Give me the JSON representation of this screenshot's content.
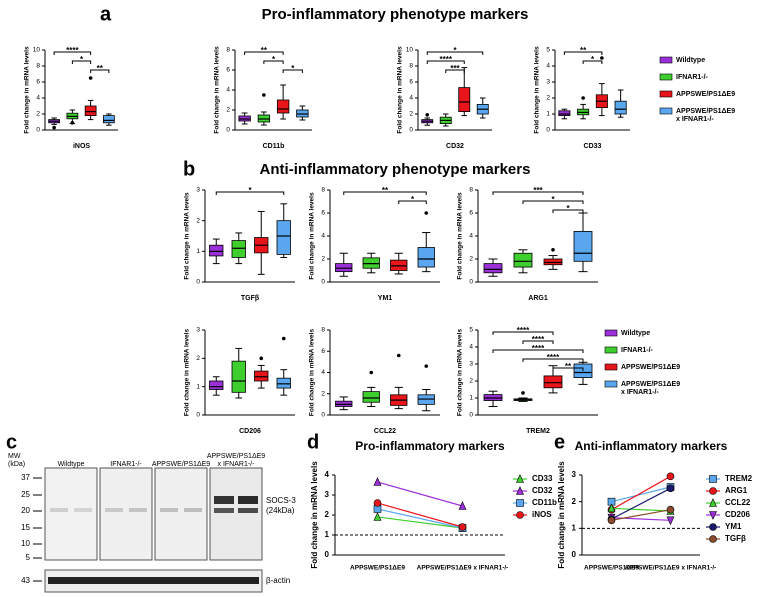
{
  "panels": [
    {
      "letter": "a",
      "title": "Pro-inflammatory phenotype markers"
    },
    {
      "letter": "b",
      "title": "Anti-inflammatory phenotype markers"
    }
  ],
  "groups": {
    "names": [
      [
        "Wildtype"
      ],
      [
        "IFNAR1-/-"
      ],
      [
        "APPSWE/PS1ΔE9"
      ],
      [
        "APPSWE/PS1ΔE9",
        "x IFNAR1-/-"
      ]
    ],
    "colors": [
      "#9b30d9",
      "#3ecf2e",
      "#e8151b",
      "#5aa7f0"
    ]
  },
  "blot": {
    "letter": "c",
    "mw_label": [
      "MW",
      "(kDa)"
    ],
    "mw_ticks": [
      37,
      25,
      20,
      15,
      10,
      5,
      43
    ],
    "lanes": [
      [
        "Wildtype"
      ],
      [
        "IFNAR1-/-"
      ],
      [
        "APPSWE/PS1ΔE9"
      ],
      [
        "APPSWE/PS1ΔE9",
        "x IFNAR1-/-"
      ]
    ],
    "bands": [
      [
        "SOCS-3",
        "(24kDa)"
      ],
      [
        "β-actin"
      ]
    ]
  },
  "chart_data": [
    {
      "type": "boxplot",
      "title": "iNOS",
      "ylabel": "Fold change in mRNA levels",
      "ylim": [
        0,
        10
      ],
      "yticks": [
        0,
        2,
        4,
        6,
        8,
        10
      ],
      "boxes": [
        {
          "min": 0.7,
          "q1": 0.9,
          "median": 1.1,
          "q3": 1.3,
          "max": 1.5,
          "outliers": [
            0.3
          ]
        },
        {
          "min": 0.8,
          "q1": 1.4,
          "median": 1.7,
          "q3": 2.1,
          "max": 2.5,
          "outliers": [
            0.9
          ]
        },
        {
          "min": 1.3,
          "q1": 1.8,
          "median": 2.3,
          "q3": 3.0,
          "max": 3.7,
          "outliers": [
            6.5
          ]
        },
        {
          "min": 0.6,
          "q1": 0.9,
          "median": 1.2,
          "q3": 1.8,
          "max": 2.0,
          "outliers": []
        }
      ],
      "brackets": [
        {
          "label": "****",
          "between": [
            0,
            2
          ]
        },
        {
          "label": "*",
          "between": [
            1,
            2
          ]
        },
        {
          "label": "**",
          "between": [
            2,
            3
          ]
        }
      ]
    },
    {
      "type": "boxplot",
      "title": "CD11b",
      "ylabel": "Fold change in mRNA levels",
      "ylim": [
        0,
        8
      ],
      "yticks": [
        0,
        2,
        4,
        6,
        8
      ],
      "boxes": [
        {
          "min": 0.6,
          "q1": 0.9,
          "median": 1.1,
          "q3": 1.4,
          "max": 1.7,
          "outliers": []
        },
        {
          "min": 0.5,
          "q1": 0.8,
          "median": 1.1,
          "q3": 1.5,
          "max": 1.8,
          "outliers": [
            3.5
          ]
        },
        {
          "min": 1.1,
          "q1": 1.7,
          "median": 2.1,
          "q3": 3.0,
          "max": 4.5,
          "outliers": []
        },
        {
          "min": 1.0,
          "q1": 1.3,
          "median": 1.6,
          "q3": 2.0,
          "max": 2.4,
          "outliers": []
        }
      ],
      "brackets": [
        {
          "label": "**",
          "between": [
            0,
            2
          ]
        },
        {
          "label": "*",
          "between": [
            1,
            2
          ]
        },
        {
          "label": "*",
          "between": [
            2,
            3
          ]
        }
      ]
    },
    {
      "type": "boxplot",
      "title": "CD32",
      "ylabel": "Fold change in mRNA levels",
      "ylim": [
        0,
        10
      ],
      "yticks": [
        0,
        2,
        4,
        6,
        8,
        10
      ],
      "boxes": [
        {
          "min": 0.6,
          "q1": 0.9,
          "median": 1.1,
          "q3": 1.3,
          "max": 1.5,
          "outliers": [
            1.9
          ]
        },
        {
          "min": 0.5,
          "q1": 0.8,
          "median": 1.2,
          "q3": 1.6,
          "max": 2.0,
          "outliers": []
        },
        {
          "min": 1.8,
          "q1": 2.3,
          "median": 3.5,
          "q3": 5.3,
          "max": 7.8,
          "outliers": []
        },
        {
          "min": 1.5,
          "q1": 2.0,
          "median": 2.6,
          "q3": 3.2,
          "max": 4.0,
          "outliers": []
        }
      ],
      "brackets": [
        {
          "label": "*",
          "between": [
            0,
            3
          ]
        },
        {
          "label": "****",
          "between": [
            0,
            2
          ]
        },
        {
          "label": "***",
          "between": [
            1,
            2
          ]
        }
      ]
    },
    {
      "type": "boxplot",
      "title": "CD33",
      "ylabel": "Fold change in mRNA levels",
      "ylim": [
        0,
        5
      ],
      "yticks": [
        0,
        1,
        2,
        3,
        4,
        5
      ],
      "boxes": [
        {
          "min": 0.7,
          "q1": 0.9,
          "median": 1.0,
          "q3": 1.2,
          "max": 1.3,
          "outliers": []
        },
        {
          "min": 0.7,
          "q1": 0.95,
          "median": 1.1,
          "q3": 1.3,
          "max": 1.6,
          "outliers": [
            2.0
          ]
        },
        {
          "min": 0.9,
          "q1": 1.4,
          "median": 1.8,
          "q3": 2.2,
          "max": 2.9,
          "outliers": [
            4.5
          ]
        },
        {
          "min": 0.8,
          "q1": 1.0,
          "median": 1.3,
          "q3": 1.8,
          "max": 2.5,
          "outliers": []
        }
      ],
      "brackets": [
        {
          "label": "**",
          "between": [
            0,
            2
          ]
        },
        {
          "label": "*",
          "between": [
            1,
            2
          ]
        }
      ]
    },
    {
      "type": "boxplot",
      "title": "TGFβ",
      "ylabel": "Fold change in mRNA levels",
      "ylim": [
        0,
        3
      ],
      "yticks": [
        0,
        1,
        2,
        3
      ],
      "boxes": [
        {
          "min": 0.6,
          "q1": 0.85,
          "median": 1.0,
          "q3": 1.2,
          "max": 1.4,
          "outliers": []
        },
        {
          "min": 0.6,
          "q1": 0.8,
          "median": 1.1,
          "q3": 1.35,
          "max": 1.6,
          "outliers": []
        },
        {
          "min": 0.25,
          "q1": 0.95,
          "median": 1.2,
          "q3": 1.45,
          "max": 2.3,
          "outliers": []
        },
        {
          "min": 0.8,
          "q1": 0.9,
          "median": 1.5,
          "q3": 2.0,
          "max": 2.55,
          "outliers": []
        }
      ],
      "brackets": [
        {
          "label": "*",
          "between": [
            0,
            3
          ]
        }
      ]
    },
    {
      "type": "boxplot",
      "title": "YM1",
      "ylabel": "Fold change in mRNA levels",
      "ylim": [
        0,
        8
      ],
      "yticks": [
        0,
        2,
        4,
        6,
        8
      ],
      "boxes": [
        {
          "min": 0.5,
          "q1": 0.9,
          "median": 1.2,
          "q3": 1.6,
          "max": 2.5,
          "outliers": []
        },
        {
          "min": 0.8,
          "q1": 1.2,
          "median": 1.6,
          "q3": 2.1,
          "max": 2.5,
          "outliers": []
        },
        {
          "min": 0.7,
          "q1": 1.0,
          "median": 1.4,
          "q3": 1.9,
          "max": 2.5,
          "outliers": []
        },
        {
          "min": 0.9,
          "q1": 1.3,
          "median": 2.0,
          "q3": 3.0,
          "max": 4.3,
          "outliers": [
            6.0
          ]
        }
      ],
      "brackets": [
        {
          "label": "**",
          "between": [
            0,
            3
          ]
        },
        {
          "label": "*",
          "between": [
            2,
            3
          ]
        }
      ]
    },
    {
      "type": "boxplot",
      "title": "ARG1",
      "ylabel": "Fold change in mRNA levels",
      "ylim": [
        0,
        8
      ],
      "yticks": [
        0,
        2,
        4,
        6,
        8
      ],
      "boxes": [
        {
          "min": 0.5,
          "q1": 0.8,
          "median": 1.1,
          "q3": 1.6,
          "max": 2.0,
          "outliers": []
        },
        {
          "min": 0.8,
          "q1": 1.3,
          "median": 1.8,
          "q3": 2.5,
          "max": 2.8,
          "outliers": []
        },
        {
          "min": 1.1,
          "q1": 1.5,
          "median": 1.7,
          "q3": 2.0,
          "max": 2.3,
          "outliers": [
            2.8
          ]
        },
        {
          "min": 0.9,
          "q1": 1.8,
          "median": 2.5,
          "q3": 4.4,
          "max": 6.0,
          "outliers": []
        }
      ],
      "brackets": [
        {
          "label": "***",
          "between": [
            0,
            3
          ]
        },
        {
          "label": "*",
          "between": [
            1,
            3
          ]
        },
        {
          "label": "*",
          "between": [
            2,
            3
          ]
        }
      ]
    },
    {
      "type": "boxplot",
      "title": "CD206",
      "ylabel": "Fold change in mRNA levels",
      "ylim": [
        0,
        3
      ],
      "yticks": [
        0,
        1,
        2,
        3
      ],
      "boxes": [
        {
          "min": 0.7,
          "q1": 0.9,
          "median": 1.0,
          "q3": 1.2,
          "max": 1.35,
          "outliers": []
        },
        {
          "min": 0.6,
          "q1": 0.8,
          "median": 1.2,
          "q3": 1.9,
          "max": 2.35,
          "outliers": []
        },
        {
          "min": 0.95,
          "q1": 1.2,
          "median": 1.35,
          "q3": 1.55,
          "max": 1.75,
          "outliers": [
            2.0
          ]
        },
        {
          "min": 0.7,
          "q1": 0.95,
          "median": 1.1,
          "q3": 1.3,
          "max": 1.6,
          "outliers": [
            2.7
          ]
        }
      ],
      "brackets": []
    },
    {
      "type": "boxplot",
      "title": "CCL22",
      "ylabel": "Fold change in mRNA levels",
      "ylim": [
        0,
        8
      ],
      "yticks": [
        0,
        2,
        4,
        6,
        8
      ],
      "boxes": [
        {
          "min": 0.5,
          "q1": 0.8,
          "median": 1.0,
          "q3": 1.3,
          "max": 1.7,
          "outliers": []
        },
        {
          "min": 0.8,
          "q1": 1.2,
          "median": 1.6,
          "q3": 2.2,
          "max": 2.6,
          "outliers": [
            4.0
          ]
        },
        {
          "min": 0.6,
          "q1": 0.9,
          "median": 1.4,
          "q3": 1.9,
          "max": 2.6,
          "outliers": [
            5.6
          ]
        },
        {
          "min": 0.4,
          "q1": 1.0,
          "median": 1.5,
          "q3": 1.9,
          "max": 2.4,
          "outliers": [
            4.6
          ]
        }
      ],
      "brackets": []
    },
    {
      "type": "boxplot",
      "title": "TREM2",
      "ylabel": "Fold change in mRNA levels",
      "ylim": [
        0,
        5
      ],
      "yticks": [
        0,
        1,
        2,
        3,
        4,
        5
      ],
      "boxes": [
        {
          "min": 0.5,
          "q1": 0.85,
          "median": 1.0,
          "q3": 1.2,
          "max": 1.4,
          "outliers": []
        },
        {
          "min": 0.8,
          "q1": 0.85,
          "median": 0.9,
          "q3": 0.95,
          "max": 1.0,
          "outliers": [
            1.3
          ]
        },
        {
          "min": 1.3,
          "q1": 1.6,
          "median": 1.9,
          "q3": 2.3,
          "max": 2.9,
          "outliers": []
        },
        {
          "min": 1.8,
          "q1": 2.2,
          "median": 2.5,
          "q3": 3.0,
          "max": 3.1,
          "outliers": []
        }
      ],
      "brackets": [
        {
          "label": "****",
          "between": [
            0,
            2
          ]
        },
        {
          "label": "****",
          "between": [
            1,
            2
          ]
        },
        {
          "label": "****",
          "between": [
            0,
            3
          ]
        },
        {
          "label": "****",
          "between": [
            1,
            3
          ]
        },
        {
          "label": "**",
          "between": [
            2,
            3
          ]
        }
      ]
    },
    {
      "type": "line",
      "letter": "d",
      "title": "Pro-inflammatory markers",
      "ylabel": "Fold change in mRNA levels",
      "categories": [
        "APPSWE/PS1ΔE9",
        "APPSWE/PS1ΔE9 x IFNAR1-/-"
      ],
      "ylim": [
        0,
        4
      ],
      "yticks": [
        0,
        1,
        2,
        3,
        4
      ],
      "hline": 1,
      "series": [
        {
          "name": "CD33",
          "color": "#3ecf2e",
          "marker": "triangle",
          "values": [
            1.9,
            1.35
          ]
        },
        {
          "name": "CD32",
          "color": "#9b30d9",
          "marker": "triangle",
          "values": [
            3.65,
            2.45
          ]
        },
        {
          "name": "CD11b",
          "color": "#5aa7f0",
          "marker": "square",
          "values": [
            2.3,
            1.35
          ]
        },
        {
          "name": "iNOS",
          "color": "#e8151b",
          "marker": "circle",
          "values": [
            2.6,
            1.4
          ]
        }
      ]
    },
    {
      "type": "line",
      "letter": "e",
      "title": "Anti-inflammatory markers",
      "ylabel": "Fold change in mRNA levels",
      "categories": [
        "APPSWE/PS1ΔE9",
        "APPSWE/PS1ΔE9 x IFNAR1-/-"
      ],
      "ylim": [
        0,
        3
      ],
      "yticks": [
        0,
        1,
        2,
        3
      ],
      "hline": 1,
      "series": [
        {
          "name": "TREM2",
          "color": "#5aa7f0",
          "marker": "square",
          "values": [
            2.0,
            2.55
          ]
        },
        {
          "name": "ARG1",
          "color": "#e8151b",
          "marker": "circle",
          "values": [
            1.7,
            2.95
          ]
        },
        {
          "name": "CCL22",
          "color": "#3ecf2e",
          "marker": "triangle",
          "values": [
            1.75,
            1.65
          ]
        },
        {
          "name": "CD206",
          "color": "#9b30d9",
          "marker": "triangle-down",
          "values": [
            1.4,
            1.3
          ]
        },
        {
          "name": "YM1",
          "color": "#1a1a6e",
          "marker": "circle",
          "values": [
            1.35,
            2.5
          ]
        },
        {
          "name": "TGFβ",
          "color": "#8b4a2b",
          "marker": "circle",
          "values": [
            1.3,
            1.7
          ]
        }
      ]
    }
  ]
}
